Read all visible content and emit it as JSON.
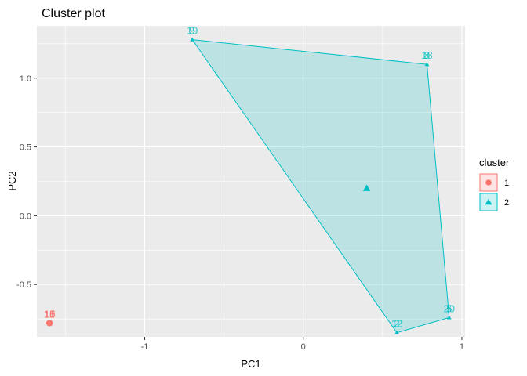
{
  "chart_data": {
    "type": "scatter",
    "title": "Cluster plot",
    "xlabel": "PC1",
    "ylabel": "PC2",
    "xlim": [
      -1.68,
      1.02
    ],
    "ylim": [
      -0.88,
      1.38
    ],
    "x_ticks": [
      -1,
      0,
      1
    ],
    "x_tick_labels": [
      "-1",
      "0",
      "1"
    ],
    "y_ticks": [
      -0.5,
      0.0,
      0.5,
      1.0
    ],
    "y_tick_labels": [
      "-0.5",
      "0.0",
      "0.5",
      "1.0"
    ],
    "grid": true,
    "legend": {
      "title": "cluster",
      "position": "right"
    },
    "series": [
      {
        "name": "1",
        "color": "#F8766D",
        "marker": "circle",
        "points": [
          {
            "x": -1.6,
            "y": -0.78,
            "label": "16"
          },
          {
            "x": -1.6,
            "y": -0.78,
            "label": "15"
          },
          {
            "x": -1.6,
            "y": -0.78,
            "label": "11"
          },
          {
            "x": -1.6,
            "y": -0.78,
            "label": "10"
          }
        ],
        "center": {
          "x": -1.6,
          "y": -0.78
        },
        "hull": []
      },
      {
        "name": "2",
        "color": "#00BFC4",
        "marker": "triangle",
        "points": [
          {
            "x": -0.7,
            "y": 1.28,
            "label": "19"
          },
          {
            "x": -0.7,
            "y": 1.28,
            "label": "9"
          },
          {
            "x": 0.78,
            "y": 1.1,
            "label": "18"
          },
          {
            "x": 0.78,
            "y": 1.1,
            "label": "8"
          },
          {
            "x": 0.92,
            "y": -0.74,
            "label": "20"
          },
          {
            "x": 0.92,
            "y": -0.74,
            "label": "5"
          },
          {
            "x": 0.59,
            "y": -0.85,
            "label": "12"
          },
          {
            "x": 0.59,
            "y": -0.85,
            "label": "2"
          }
        ],
        "center": {
          "x": 0.4,
          "y": 0.2
        },
        "hull": [
          {
            "x": -0.7,
            "y": 1.28
          },
          {
            "x": 0.78,
            "y": 1.1
          },
          {
            "x": 0.92,
            "y": -0.74
          },
          {
            "x": 0.59,
            "y": -0.85
          }
        ]
      }
    ]
  }
}
